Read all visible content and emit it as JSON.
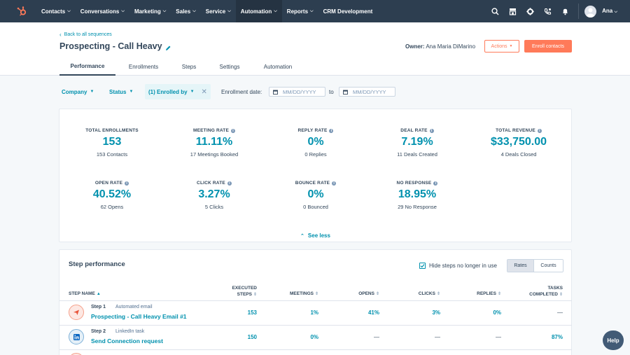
{
  "topnav": {
    "items": [
      {
        "label": "Contacts"
      },
      {
        "label": "Conversations"
      },
      {
        "label": "Marketing"
      },
      {
        "label": "Sales"
      },
      {
        "label": "Service"
      },
      {
        "label": "Automation"
      },
      {
        "label": "Reports"
      },
      {
        "label": "CRM Development"
      }
    ],
    "user_name": "Ana",
    "icons": [
      "search-icon",
      "marketplace-icon",
      "settings-icon",
      "calling-icon",
      "notifications-icon"
    ]
  },
  "header": {
    "back_link": "Back to all sequences",
    "title": "Prospecting - Call Heavy",
    "owner_label": "Owner:",
    "owner_name": "Ana Maria DiMarino",
    "actions_label": "Actions",
    "enroll_label": "Enroll contacts",
    "tabs": [
      {
        "label": "Performance"
      },
      {
        "label": "Enrollments"
      },
      {
        "label": "Steps"
      },
      {
        "label": "Settings"
      },
      {
        "label": "Automation"
      }
    ]
  },
  "filters": {
    "company": "Company",
    "status": "Status",
    "enrolled_by": "(1) Enrolled by",
    "enrollment_date_label": "Enrollment date:",
    "date_placeholder": "MM/DD/YYYY",
    "to_label": "to"
  },
  "stats": [
    {
      "label": "TOTAL ENROLLMENTS",
      "value": "153",
      "sub": "153 Contacts",
      "info": false
    },
    {
      "label": "MEETING RATE",
      "value": "11.11%",
      "sub": "17 Meetings Booked",
      "info": true
    },
    {
      "label": "REPLY RATE",
      "value": "0%",
      "sub": "0 Replies",
      "info": true
    },
    {
      "label": "DEAL RATE",
      "value": "7.19%",
      "sub": "11 Deals Created",
      "info": true
    },
    {
      "label": "TOTAL REVENUE",
      "value": "$33,750.00",
      "sub": "4 Deals Closed",
      "info": true
    },
    {
      "label": "OPEN RATE",
      "value": "40.52%",
      "sub": "62 Opens",
      "info": true
    },
    {
      "label": "CLICK RATE",
      "value": "3.27%",
      "sub": "5 Clicks",
      "info": true
    },
    {
      "label": "BOUNCE RATE",
      "value": "0%",
      "sub": "0 Bounced",
      "info": true
    },
    {
      "label": "NO RESPONSE",
      "value": "18.95%",
      "sub": "29 No Response",
      "info": true
    }
  ],
  "see_less": "See less",
  "step_performance": {
    "title": "Step performance",
    "hide_steps_label": "Hide steps no longer in use",
    "toggle": {
      "rates": "Rates",
      "counts": "Counts"
    },
    "columns": {
      "step_name": "STEP NAME",
      "executed_1": "EXECUTED",
      "executed_2": "STEPS",
      "meetings": "MEETINGS",
      "opens": "OPENS",
      "clicks": "CLICKS",
      "replies": "REPLIES",
      "tasks_1": "TASKS",
      "tasks_2": "COMPLETED"
    },
    "rows": [
      {
        "step": "Step 1",
        "type": "Automated email",
        "name": "Prospecting - Call Heavy Email #1",
        "icon": "email-send-icon",
        "executed": "153",
        "meetings": "1%",
        "opens": "41%",
        "clicks": "3%",
        "replies": "0%",
        "tasks": "—"
      },
      {
        "step": "Step 2",
        "type": "LinkedIn task",
        "name": "Send Connection request",
        "icon": "linkedin-icon",
        "executed": "150",
        "meetings": "0%",
        "opens": "—",
        "clicks": "—",
        "replies": "—",
        "tasks": "87%"
      }
    ]
  },
  "help_label": "Help",
  "colors": {
    "nav": "#2d3e50",
    "accent": "#0091ae",
    "orange": "#ff7a59"
  }
}
